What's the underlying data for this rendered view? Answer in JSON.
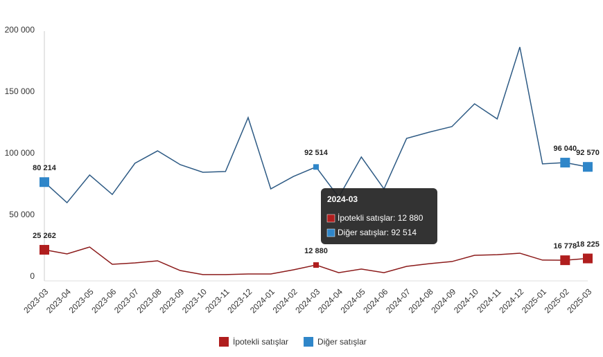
{
  "chart_data": {
    "type": "line",
    "categories": [
      "2023-03",
      "2023-04",
      "2023-05",
      "2023-06",
      "2023-07",
      "2023-08",
      "2023-09",
      "2023-10",
      "2023-11",
      "2023-12",
      "2024-01",
      "2024-02",
      "2024-03",
      "2024-04",
      "2024-05",
      "2024-06",
      "2024-07",
      "2024-08",
      "2024-09",
      "2024-10",
      "2024-11",
      "2024-12",
      "2025-01",
      "2025-02",
      "2025-03"
    ],
    "series": [
      {
        "name": "İpotekli satışlar",
        "color": "#b01e1e",
        "line_color": "#8b1a1a",
        "values": [
          25262,
          21900,
          27500,
          13500,
          14600,
          16300,
          8400,
          5100,
          5100,
          5600,
          5600,
          9000,
          12880,
          6700,
          9600,
          6700,
          11800,
          14000,
          15700,
          20800,
          21300,
          22500,
          16900,
          16778,
          18225
        ],
        "value_labels": [
          "25 262",
          null,
          null,
          null,
          null,
          null,
          null,
          null,
          null,
          null,
          null,
          null,
          "12 880",
          null,
          null,
          null,
          null,
          null,
          null,
          null,
          null,
          null,
          null,
          "16 778",
          "18 225"
        ]
      },
      {
        "name": "Diğer satışlar",
        "color": "#2f86c9",
        "line_color": "#2d5a84",
        "values": [
          80214,
          63500,
          86000,
          70200,
          95500,
          105600,
          94400,
          88200,
          88800,
          132600,
          74700,
          84800,
          92514,
          68000,
          100600,
          74700,
          115700,
          120800,
          125300,
          143800,
          131500,
          189900,
          95000,
          96040,
          92570
        ],
        "value_labels": [
          "80 214",
          null,
          null,
          null,
          null,
          null,
          null,
          null,
          null,
          null,
          null,
          null,
          "92 514",
          null,
          null,
          null,
          null,
          null,
          null,
          null,
          null,
          null,
          null,
          "96 040",
          "92 570"
        ]
      }
    ],
    "ylim": [
      0,
      200000
    ],
    "yticks": [
      0,
      {
        "value": 50000,
        "label": "50 000"
      },
      {
        "value": 100000,
        "label": "100 000"
      },
      {
        "value": 150000,
        "label": "150 000"
      },
      {
        "value": 200000,
        "label": "200 000"
      }
    ],
    "grid": false,
    "legend": "bottom",
    "tooltip": {
      "title": "2024-03",
      "lines": [
        "İpotekli satışlar: 12 880",
        "Diğer satışlar: 92 514"
      ]
    }
  }
}
